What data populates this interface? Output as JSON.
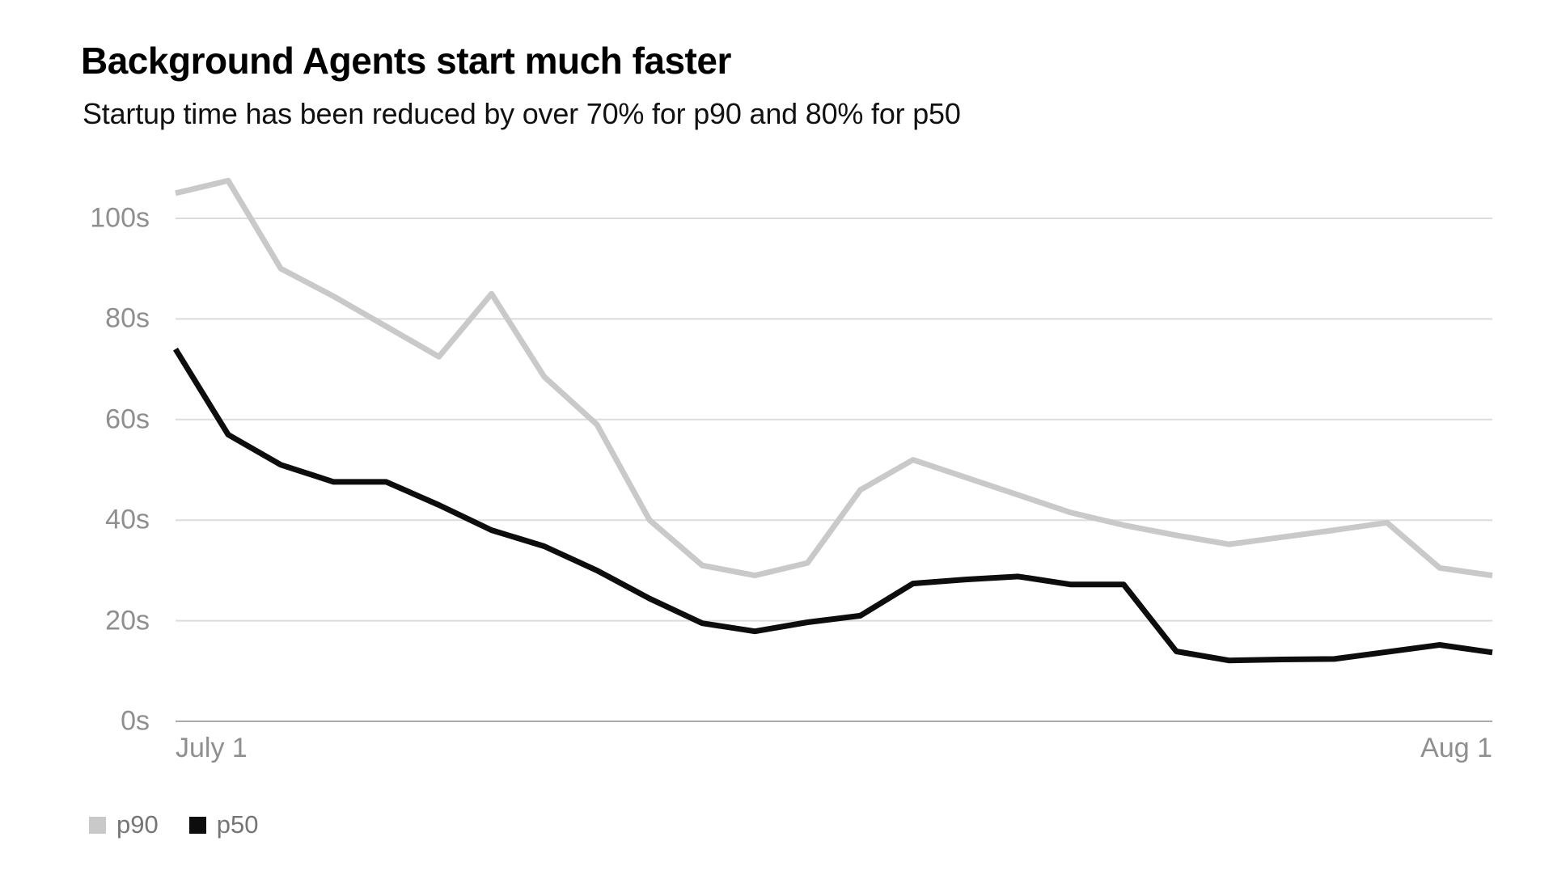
{
  "page": {
    "background": "#ffffff"
  },
  "header": {
    "title": "Background Agents start much faster",
    "subtitle": "Startup time has been reduced by over 70% for p90 and 80% for p50"
  },
  "chart_data": {
    "type": "line",
    "title": "Background Agents start much faster",
    "subtitle": "Startup time has been reduced by over 70% for p90 and 80% for p50",
    "xlabel": "",
    "ylabel": "",
    "x_range_labels": [
      "July 1",
      "Aug 1"
    ],
    "y_ticks": [
      {
        "value": 0,
        "label": "0s"
      },
      {
        "value": 20,
        "label": "20s"
      },
      {
        "value": 40,
        "label": "40s"
      },
      {
        "value": 60,
        "label": "60s"
      },
      {
        "value": 80,
        "label": "80s"
      },
      {
        "value": 100,
        "label": "100s"
      }
    ],
    "ylim": [
      0,
      110
    ],
    "grid": "horizontal",
    "grid_color": "#dcdcdc",
    "axis_line_color": "#ababab",
    "tick_label_color": "#8f8f8f",
    "legend_position": "bottom-left",
    "series": [
      {
        "name": "p90",
        "color": "#c9c9c9",
        "values": [
          105,
          107.5,
          90,
          84.5,
          78.5,
          72.5,
          85,
          68.5,
          59,
          40,
          31,
          29,
          31.5,
          46,
          52,
          48.5,
          45,
          41.5,
          39,
          37,
          35.2,
          36.6,
          38,
          39.5,
          30.5,
          29
        ]
      },
      {
        "name": "p50",
        "color": "#0d0d0d",
        "values": [
          74,
          57,
          51,
          47.6,
          47.6,
          43,
          38,
          34.8,
          30,
          24.4,
          19.5,
          17.9,
          19.7,
          21,
          27.4,
          28.2,
          28.8,
          27.2,
          27.2,
          13.9,
          12.1,
          12.3,
          12.4,
          13.8,
          15.2,
          13.7
        ]
      }
    ],
    "legend": [
      {
        "label": "p90",
        "color": "#c9c9c9"
      },
      {
        "label": "p50",
        "color": "#0d0d0d"
      }
    ]
  }
}
